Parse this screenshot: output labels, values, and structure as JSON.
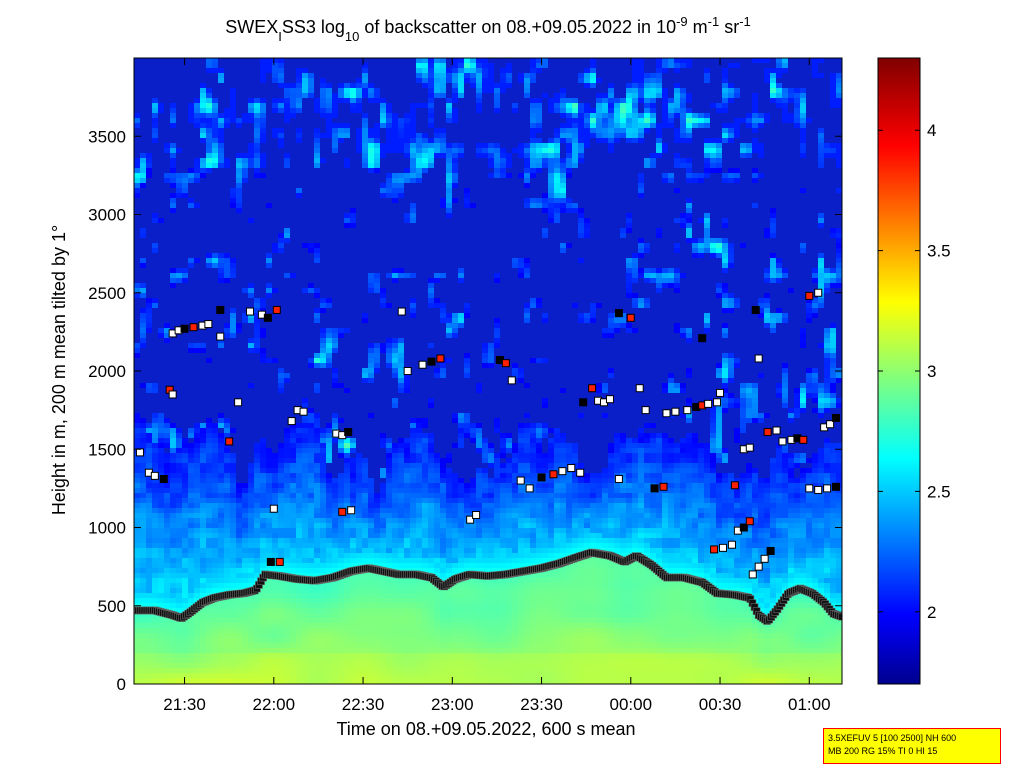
{
  "figure": {
    "title_prefix": "SWEX",
    "title_sub1": "I",
    "title_mid1": "SS3 log",
    "title_sub2": "10",
    "title_mid2": " of backscatter on 08.+09.05.2022 in 10",
    "title_sup1": "-9",
    "title_mid3": " m",
    "title_sup2": "-1",
    "title_mid4": " sr",
    "title_sup3": "-1",
    "info_line1": "3.5XEFUV 5 [100 2500] NH 600",
    "info_line2": "MB 200 RG 15% TI 0 HI 15"
  },
  "chart_data": {
    "type": "heatmap",
    "title": "SWEXISS3 log10 of backscatter on 08.+09.05.2022 in 10-9 m-1 sr-1",
    "xlabel": "Time on 08.+09.05.2022, 600 s mean",
    "ylabel": "Height in m, 200 m mean tilted by 1°",
    "x_ticks": [
      "21:30",
      "22:00",
      "22:30",
      "23:00",
      "23:30",
      "00:00",
      "00:30",
      "01:00"
    ],
    "x_tick_minutes": [
      90,
      120,
      150,
      180,
      210,
      240,
      270,
      300
    ],
    "xlim_minutes": [
      73,
      311
    ],
    "y_ticks": [
      0,
      500,
      1000,
      1500,
      2000,
      2500,
      3000,
      3500
    ],
    "ylim": [
      0,
      4000
    ],
    "colorbar": {
      "colormap": "jet",
      "range": [
        1.7,
        4.3
      ],
      "ticks": [
        2,
        2.5,
        3,
        3.5,
        4
      ],
      "tick_labels": [
        "2",
        "2.5",
        "3",
        "3.5",
        "4"
      ]
    },
    "boundary_layer_top": [
      [
        73,
        470
      ],
      [
        80,
        470
      ],
      [
        86,
        440
      ],
      [
        89,
        420
      ],
      [
        92,
        460
      ],
      [
        96,
        520
      ],
      [
        100,
        550
      ],
      [
        105,
        570
      ],
      [
        110,
        580
      ],
      [
        114,
        600
      ],
      [
        117,
        700
      ],
      [
        122,
        690
      ],
      [
        128,
        670
      ],
      [
        134,
        660
      ],
      [
        140,
        680
      ],
      [
        146,
        720
      ],
      [
        152,
        740
      ],
      [
        157,
        720
      ],
      [
        162,
        700
      ],
      [
        168,
        700
      ],
      [
        173,
        680
      ],
      [
        177,
        620
      ],
      [
        181,
        670
      ],
      [
        186,
        700
      ],
      [
        192,
        690
      ],
      [
        198,
        700
      ],
      [
        204,
        720
      ],
      [
        210,
        740
      ],
      [
        216,
        770
      ],
      [
        222,
        810
      ],
      [
        227,
        840
      ],
      [
        233,
        820
      ],
      [
        238,
        780
      ],
      [
        242,
        820
      ],
      [
        247,
        760
      ],
      [
        252,
        680
      ],
      [
        258,
        680
      ],
      [
        264,
        650
      ],
      [
        269,
        580
      ],
      [
        275,
        570
      ],
      [
        280,
        550
      ],
      [
        283,
        440
      ],
      [
        286,
        400
      ],
      [
        289,
        470
      ],
      [
        293,
        580
      ],
      [
        297,
        610
      ],
      [
        301,
        580
      ],
      [
        305,
        520
      ],
      [
        308,
        450
      ],
      [
        311,
        430
      ]
    ],
    "cloud_base_points": [
      [
        75,
        1480
      ],
      [
        78,
        1350
      ],
      [
        80,
        1330
      ],
      [
        83,
        1310
      ],
      [
        85,
        1880
      ],
      [
        86,
        1850
      ],
      [
        86,
        2240
      ],
      [
        88,
        2260
      ],
      [
        90,
        2270
      ],
      [
        93,
        2280
      ],
      [
        96,
        2290
      ],
      [
        98,
        2300
      ],
      [
        102,
        2220
      ],
      [
        102,
        2390
      ],
      [
        105,
        1550
      ],
      [
        108,
        1800
      ],
      [
        112,
        2380
      ],
      [
        116,
        2360
      ],
      [
        118,
        2340
      ],
      [
        121,
        2390
      ],
      [
        126,
        1680
      ],
      [
        128,
        1750
      ],
      [
        130,
        1740
      ],
      [
        119,
        780
      ],
      [
        122,
        780
      ],
      [
        120,
        1120
      ],
      [
        141,
        1600
      ],
      [
        143,
        1590
      ],
      [
        145,
        1610
      ],
      [
        143,
        1100
      ],
      [
        146,
        1110
      ],
      [
        163,
        2380
      ],
      [
        170,
        2040
      ],
      [
        173,
        2060
      ],
      [
        176,
        2080
      ],
      [
        165,
        2000
      ],
      [
        186,
        1050
      ],
      [
        188,
        1080
      ],
      [
        196,
        2070
      ],
      [
        198,
        2050
      ],
      [
        200,
        1940
      ],
      [
        203,
        1300
      ],
      [
        206,
        1250
      ],
      [
        210,
        1320
      ],
      [
        214,
        1340
      ],
      [
        217,
        1360
      ],
      [
        220,
        1380
      ],
      [
        223,
        1350
      ],
      [
        224,
        1800
      ],
      [
        227,
        1890
      ],
      [
        229,
        1810
      ],
      [
        231,
        1800
      ],
      [
        233,
        1820
      ],
      [
        236,
        2370
      ],
      [
        240,
        2340
      ],
      [
        236,
        1310
      ],
      [
        243,
        1890
      ],
      [
        245,
        1750
      ],
      [
        248,
        1250
      ],
      [
        251,
        1260
      ],
      [
        252,
        1730
      ],
      [
        255,
        1740
      ],
      [
        259,
        1750
      ],
      [
        262,
        1770
      ],
      [
        264,
        1780
      ],
      [
        266,
        1790
      ],
      [
        269,
        1800
      ],
      [
        270,
        1860
      ],
      [
        264,
        2210
      ],
      [
        268,
        860
      ],
      [
        271,
        870
      ],
      [
        274,
        890
      ],
      [
        276,
        980
      ],
      [
        278,
        1000
      ],
      [
        280,
        1040
      ],
      [
        281,
        700
      ],
      [
        283,
        750
      ],
      [
        285,
        800
      ],
      [
        287,
        850
      ],
      [
        275,
        1270
      ],
      [
        278,
        1500
      ],
      [
        280,
        1510
      ],
      [
        283,
        2080
      ],
      [
        282,
        2390
      ],
      [
        286,
        1610
      ],
      [
        289,
        1620
      ],
      [
        291,
        1550
      ],
      [
        294,
        1560
      ],
      [
        296,
        1570
      ],
      [
        298,
        1560
      ],
      [
        300,
        1250
      ],
      [
        303,
        1240
      ],
      [
        306,
        1250
      ],
      [
        309,
        1260
      ],
      [
        300,
        2480
      ],
      [
        303,
        2500
      ],
      [
        305,
        1640
      ],
      [
        307,
        1660
      ],
      [
        309,
        1700
      ]
    ]
  }
}
